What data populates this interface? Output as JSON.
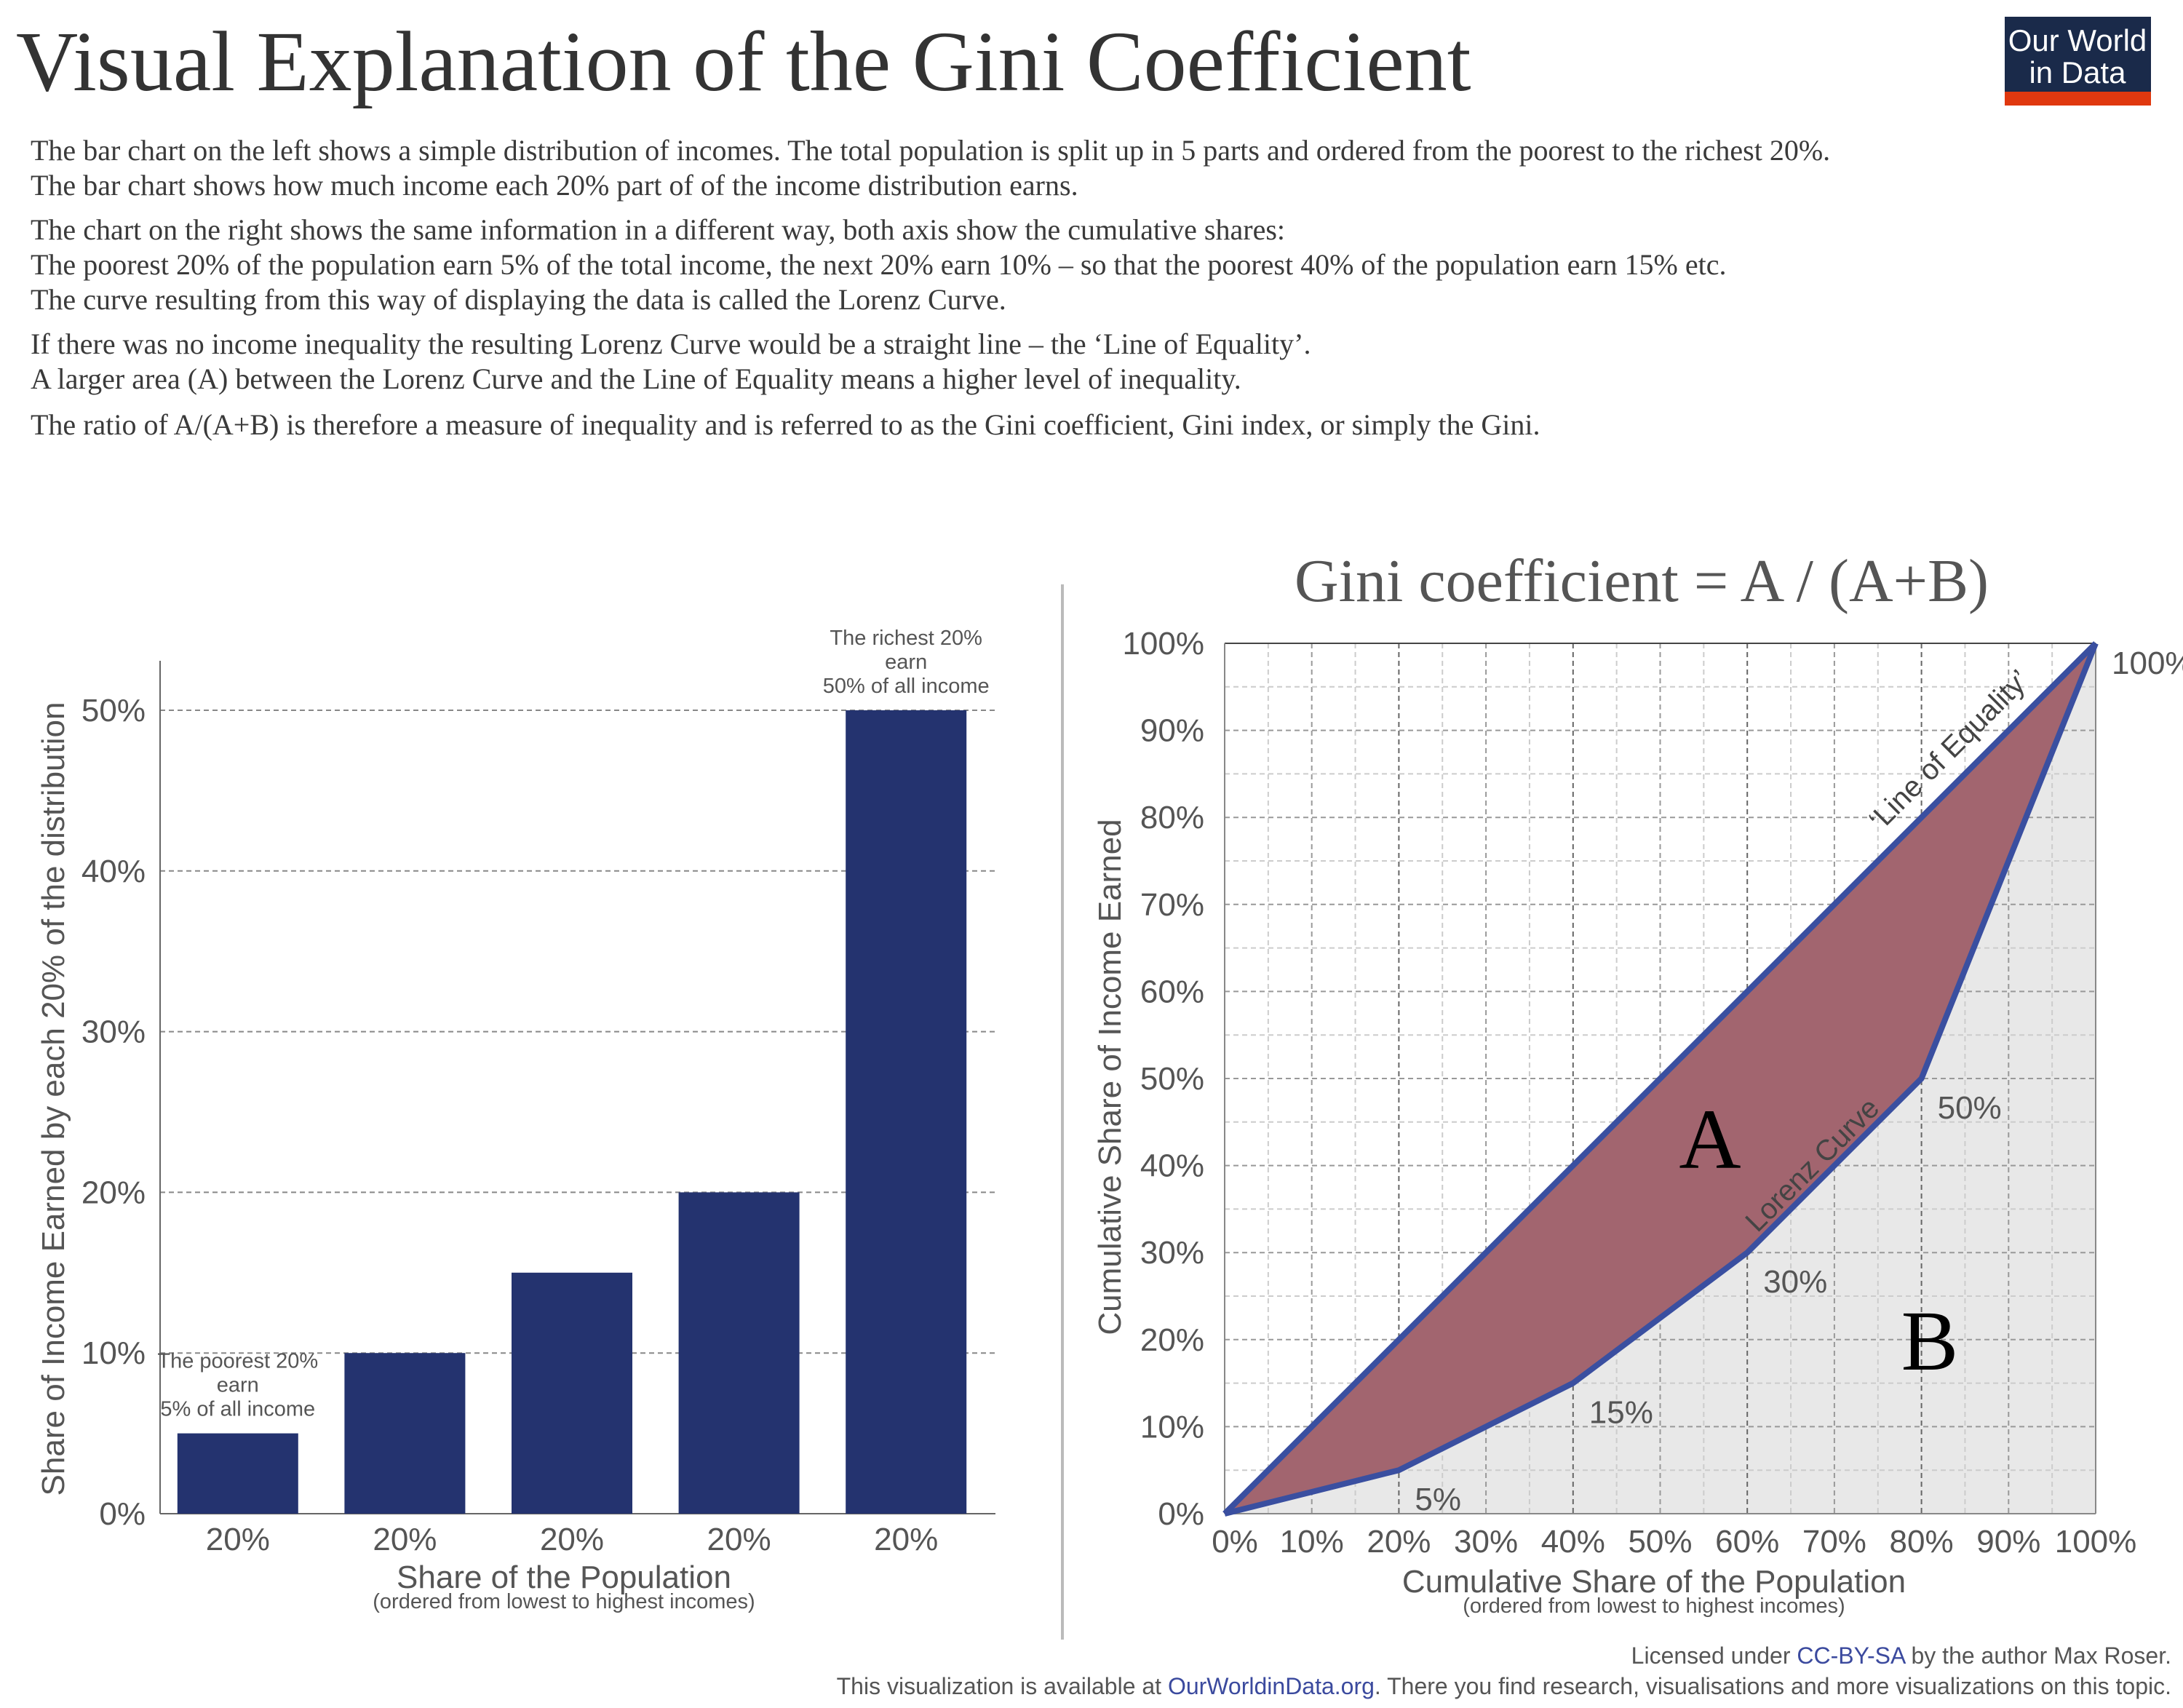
{
  "header": {
    "title": "Visual Explanation of the Gini Coefficient",
    "logo": {
      "line1": "Our World",
      "line2": "in Data",
      "bg": "#1a2a4a",
      "stripe": "#e0380f"
    },
    "description": [
      "The bar chart on the left shows a simple distribution of incomes. The total population is split up in 5 parts and ordered from the poorest to the richest 20%.",
      "The bar chart shows how much income each 20% part of of the income distribution earns.",
      "The chart on the right shows the same information in a different way, both axis show the cumulative shares:",
      "The poorest 20% of the population earn 5% of the total income, the next 20% earn 10% – so that the poorest 40% of the population earn 15% etc.",
      "The curve resulting from this way of displaying the data is called the Lorenz Curve.",
      "If there was no income inequality the resulting Lorenz Curve would be a straight line – the ‘Line of Equality’.",
      "A larger area (A) between the Lorenz Curve and the Line of Equality means a higher level of inequality.",
      "The ratio of A/(A+B) is therefore a measure of inequality and is referred to as the Gini coefficient, Gini index, or simply the Gini."
    ]
  },
  "chart_data": [
    {
      "type": "bar",
      "categories": [
        "20%",
        "20%",
        "20%",
        "20%",
        "20%"
      ],
      "values": [
        5,
        10,
        15,
        20,
        50
      ],
      "xlabel": "Share of the Population",
      "xlabel_sub": "(ordered from lowest to highest incomes)",
      "ylabel": "Share of Income Earned by each 20% of the distribution",
      "ylim": [
        0,
        50
      ],
      "yticks": [
        "0%",
        "10%",
        "20%",
        "30%",
        "40%",
        "50%"
      ],
      "grid": "horizontal dashed",
      "bar_color": "#24336f",
      "annotations": [
        {
          "bar": 0,
          "lines": [
            "The poorest 20%",
            "earn",
            "5% of all income"
          ]
        },
        {
          "bar": 4,
          "lines": [
            "The richest 20%",
            "earn",
            "50% of all income"
          ]
        }
      ]
    },
    {
      "type": "line",
      "title": "Gini coefficient = A / (A+B)",
      "x": [
        0,
        20,
        40,
        60,
        80,
        100
      ],
      "series": [
        {
          "name": "Lorenz Curve",
          "values": [
            0,
            5,
            15,
            30,
            50,
            100
          ]
        },
        {
          "name": "‘Line of Equality’",
          "values": [
            0,
            20,
            40,
            60,
            80,
            100
          ]
        }
      ],
      "point_labels": [
        "5%",
        "15%",
        "30%",
        "50%",
        "100%"
      ],
      "xlabel": "Cumulative Share of the Population",
      "xlabel_sub": "(ordered from lowest to highest incomes)",
      "ylabel": "Cumulative Share of Income Earned",
      "xlim": [
        0,
        100
      ],
      "ylim": [
        0,
        100
      ],
      "xticks": [
        "0%",
        "10%",
        "20%",
        "30%",
        "40%",
        "50%",
        "60%",
        "70%",
        "80%",
        "90%",
        "100%"
      ],
      "yticks": [
        "0%",
        "10%",
        "20%",
        "30%",
        "40%",
        "50%",
        "60%",
        "70%",
        "80%",
        "90%",
        "100%"
      ],
      "grid": "dashed",
      "area_labels": {
        "a": "A",
        "b": "B"
      },
      "colors": {
        "line": "#3a4fa0",
        "area_a": "#a2656f",
        "area_b": "#e8e8e8"
      }
    }
  ],
  "footer": {
    "license_pre": "Licensed under ",
    "license_link": "CC-BY-SA",
    "license_post": " by the author Max Roser.",
    "avail_pre": "This visualization is available at ",
    "avail_link": "OurWorldinData.org",
    "avail_post": ". There you find research, visualisations and more visualizations on this topic."
  }
}
